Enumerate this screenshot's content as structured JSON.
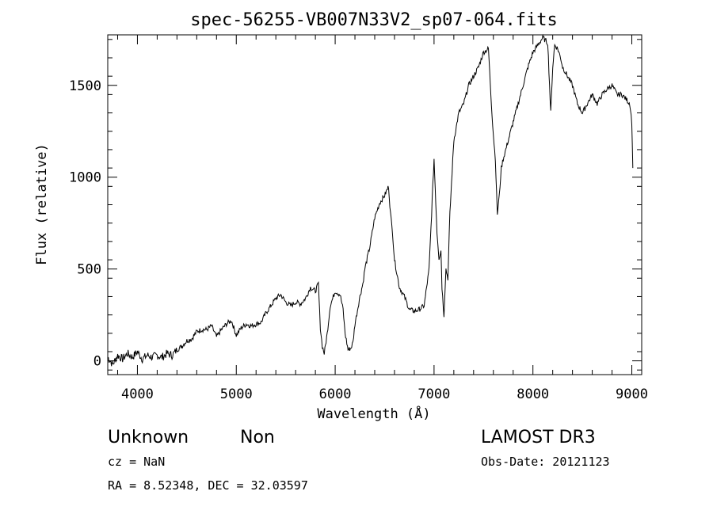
{
  "chart_data": {
    "type": "line",
    "title": "spec-56255-VB007N33V2_sp07-064.fits",
    "xlabel": "Wavelength (Å)",
    "ylabel": "Flux (relative)",
    "xlim": [
      3700,
      9100
    ],
    "ylim": [
      -75,
      1775
    ],
    "xticks": [
      4000,
      5000,
      6000,
      7000,
      8000,
      9000
    ],
    "yticks": [
      0,
      500,
      1000,
      1500
    ],
    "grid": false,
    "series": [
      {
        "x": [
          3700,
          3750,
          3800,
          3850,
          3900,
          3950,
          4000,
          4050,
          4100,
          4150,
          4200,
          4250,
          4300,
          4350,
          4400,
          4450,
          4500,
          4550,
          4600,
          4650,
          4700,
          4750,
          4800,
          4850,
          4900,
          4950,
          5000,
          5050,
          5100,
          5150,
          5200,
          5250,
          5300,
          5350,
          5400,
          5450,
          5500,
          5550,
          5600,
          5650,
          5700,
          5750,
          5800,
          5830,
          5850,
          5870,
          5890,
          5920,
          5950,
          6000,
          6050,
          6080,
          6100,
          6130,
          6160,
          6180,
          6200,
          6250,
          6280,
          6300,
          6350,
          6400,
          6450,
          6500,
          6540,
          6560,
          6580,
          6600,
          6650,
          6700,
          6750,
          6800,
          6850,
          6900,
          6950,
          7000,
          7030,
          7050,
          7070,
          7080,
          7100,
          7120,
          7140,
          7160,
          7200,
          7250,
          7300,
          7350,
          7400,
          7450,
          7500,
          7550,
          7580,
          7600,
          7620,
          7640,
          7660,
          7680,
          7700,
          7750,
          7800,
          7850,
          7900,
          7950,
          8000,
          8050,
          8100,
          8150,
          8180,
          8200,
          8220,
          8250,
          8280,
          8300,
          8350,
          8400,
          8450,
          8500,
          8550,
          8600,
          8650,
          8700,
          8750,
          8800,
          8850,
          8900,
          8950,
          8980,
          9000,
          9010
        ],
        "y": [
          20,
          -20,
          30,
          10,
          40,
          20,
          50,
          10,
          30,
          20,
          30,
          20,
          40,
          30,
          60,
          80,
          110,
          120,
          160,
          170,
          170,
          190,
          130,
          170,
          200,
          220,
          140,
          180,
          200,
          190,
          200,
          210,
          260,
          300,
          340,
          360,
          320,
          300,
          320,
          310,
          340,
          400,
          380,
          420,
          180,
          80,
          40,
          150,
          300,
          380,
          360,
          280,
          150,
          60,
          70,
          100,
          200,
          350,
          420,
          500,
          620,
          780,
          860,
          900,
          950,
          800,
          700,
          550,
          400,
          350,
          280,
          270,
          280,
          300,
          500,
          1100,
          700,
          560,
          600,
          400,
          250,
          500,
          450,
          800,
          1200,
          1350,
          1400,
          1500,
          1550,
          1600,
          1680,
          1700,
          1400,
          1230,
          1100,
          800,
          900,
          1050,
          1100,
          1200,
          1300,
          1400,
          1500,
          1600,
          1680,
          1720,
          1760,
          1730,
          1350,
          1600,
          1720,
          1700,
          1650,
          1600,
          1550,
          1500,
          1400,
          1350,
          1400,
          1450,
          1400,
          1450,
          1480,
          1500,
          1450,
          1450,
          1420,
          1400,
          1300,
          1050
        ]
      }
    ]
  },
  "annotations": {
    "object_class": "Unknown",
    "subclass": "Non",
    "survey": "LAMOST DR3",
    "redshift": "cz = NaN",
    "obs_date": "Obs-Date: 20121123",
    "coords": "RA =   8.52348, DEC =  32.03597"
  }
}
